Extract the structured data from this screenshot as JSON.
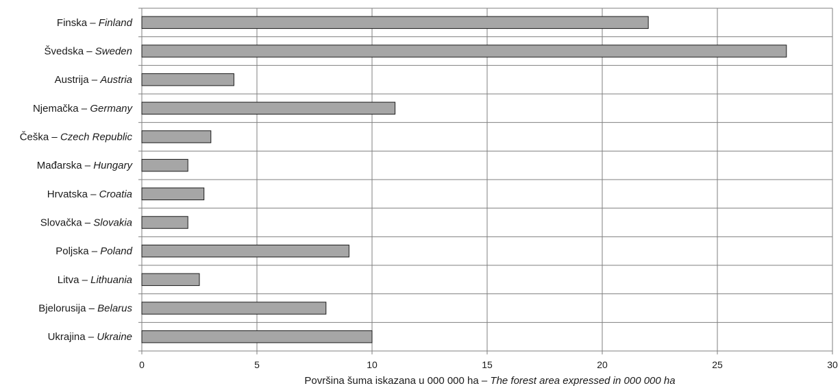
{
  "chart_data": {
    "type": "bar",
    "orientation": "horizontal",
    "categories": [
      {
        "local": "Finska",
        "english": "Finland"
      },
      {
        "local": "Švedska",
        "english": "Sweden"
      },
      {
        "local": "Austrija",
        "english": "Austria"
      },
      {
        "local": "Njemačka",
        "english": "Germany"
      },
      {
        "local": "Češka",
        "english": "Czech Republic"
      },
      {
        "local": "Mađarska",
        "english": "Hungary"
      },
      {
        "local": "Hrvatska",
        "english": "Croatia"
      },
      {
        "local": "Slovačka",
        "english": "Slovakia"
      },
      {
        "local": "Poljska",
        "english": "Poland"
      },
      {
        "local": "Litva",
        "english": "Lithuania"
      },
      {
        "local": "Bjelorusija",
        "english": "Belarus"
      },
      {
        "local": "Ukrajina",
        "english": "Ukraine"
      }
    ],
    "values": [
      22,
      28,
      4,
      11,
      3,
      2,
      2.7,
      2,
      9,
      2.5,
      8,
      10
    ],
    "label_separator": " – ",
    "xlabel": {
      "local": "Površina šuma iskazana u 000 000 ha",
      "english": "The forest area expressed in 000 000 ha"
    },
    "xlim": [
      0,
      30
    ],
    "xticks": [
      0,
      5,
      10,
      15,
      20,
      25,
      30
    ],
    "grid": true,
    "legend": "none",
    "colors": {
      "bar_fill": "#a6a6a6",
      "bar_stroke": "#1a1a1a",
      "grid": "#7f7f7f",
      "text": "#1a1a1a"
    }
  }
}
